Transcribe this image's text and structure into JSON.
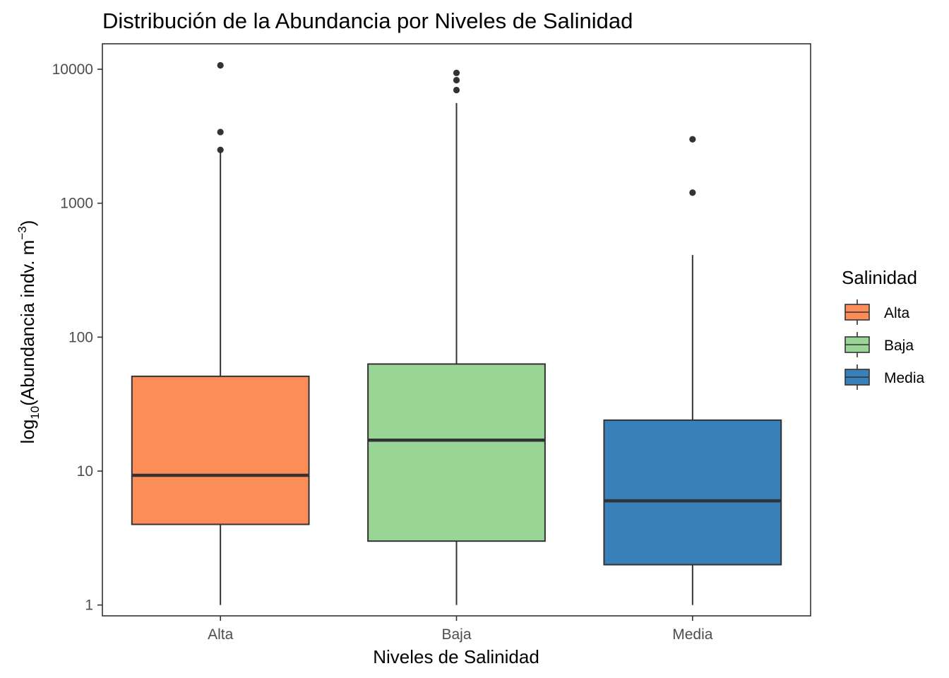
{
  "chart_data": {
    "type": "boxplot",
    "title": "Distribución de la Abundancia por Niveles de Salinidad",
    "xlabel": "Niveles de Salinidad",
    "ylabel": {
      "prefix": "log",
      "subscript": "10",
      "text": "(Abundancia indv. m",
      "superscript": "−3",
      "suffix": ")"
    },
    "y_scale": "log10",
    "ylim": [
      0.83,
      15500
    ],
    "y_ticks": [
      1,
      10,
      100,
      1000,
      10000
    ],
    "y_tick_labels": [
      "1",
      "10",
      "100",
      "1000",
      "10000"
    ],
    "categories": [
      "Alta",
      "Baja",
      "Media"
    ],
    "boxes": [
      {
        "category": "Alta",
        "min": 1,
        "q1": 4,
        "median": 9.3,
        "q3": 51,
        "max": 2400,
        "outliers": [
          2500,
          3400,
          10700
        ],
        "color": "#fc8d59"
      },
      {
        "category": "Baja",
        "min": 1,
        "q1": 3,
        "median": 17,
        "q3": 63,
        "max": 5600,
        "outliers": [
          7000,
          8300,
          9400
        ],
        "color": "#99d594"
      },
      {
        "category": "Media",
        "min": 1,
        "q1": 2,
        "median": 6,
        "q3": 24,
        "max": 410,
        "outliers": [
          1200,
          3000
        ],
        "color": "#3880ba"
      }
    ],
    "legend": {
      "title": "Salinidad",
      "position": "right",
      "entries": [
        {
          "label": "Alta",
          "color": "#fc8d59"
        },
        {
          "label": "Baja",
          "color": "#99d594"
        },
        {
          "label": "Media",
          "color": "#3880ba"
        }
      ]
    },
    "grid": false
  }
}
